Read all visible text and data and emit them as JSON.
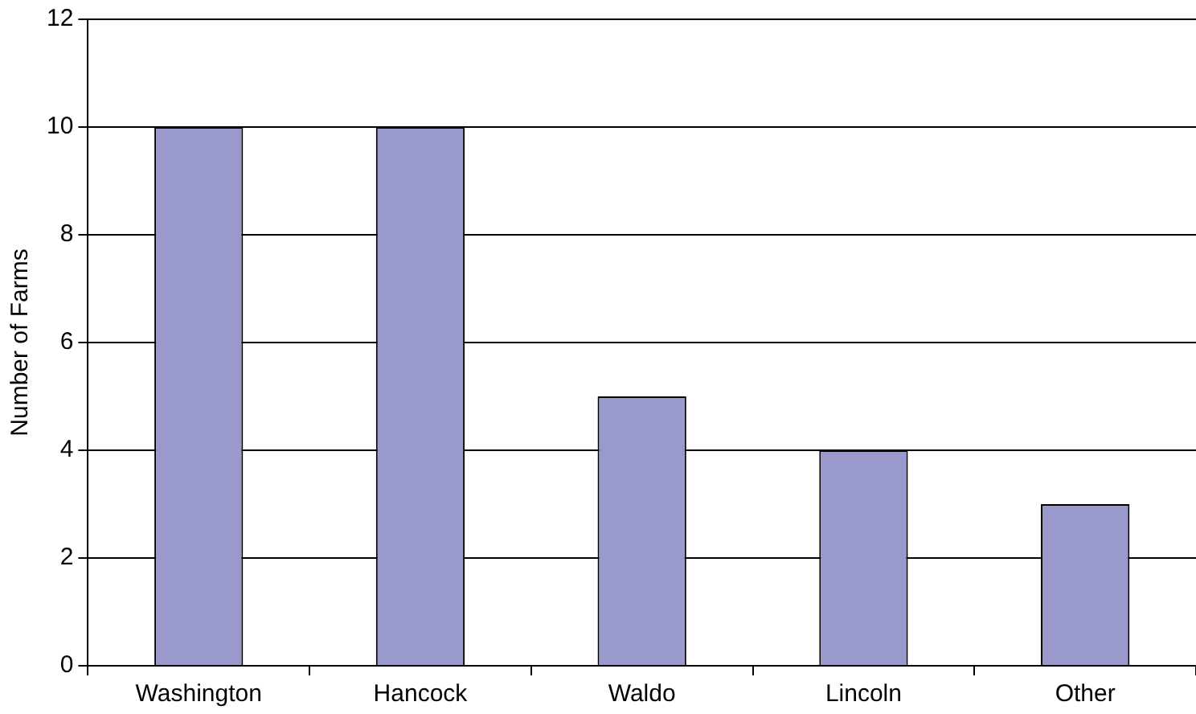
{
  "chart_data": {
    "type": "bar",
    "ylabel": "Number of Farms",
    "categories": [
      "Washington",
      "Hancock",
      "Waldo",
      "Lincoln",
      "Other"
    ],
    "values": [
      10,
      10,
      5,
      4,
      3
    ],
    "color": "#9999cc",
    "ylim": [
      0,
      12
    ],
    "yticks": [
      0,
      2,
      4,
      6,
      8,
      10,
      12
    ],
    "grid": "y",
    "legend": false
  }
}
